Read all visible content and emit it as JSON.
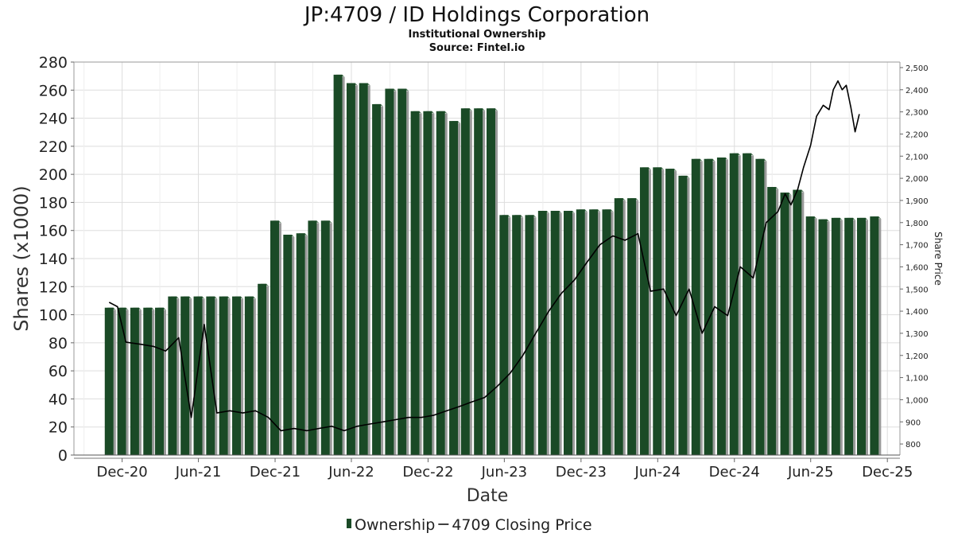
{
  "chart_data": {
    "type": "bar",
    "title": "JP:4709 / ID Holdings Corporation",
    "subtitle_line1": "Institutional Ownership",
    "subtitle_line2": "Source: Fintel.io",
    "xlabel": "Date",
    "ylabel": "Shares (x1000)",
    "y2label": "Share Price",
    "ylim": [
      0,
      280
    ],
    "y_ticks": [
      0,
      20,
      40,
      60,
      80,
      100,
      120,
      140,
      160,
      180,
      200,
      220,
      240,
      260,
      280
    ],
    "y2lim": [
      750,
      2525
    ],
    "y2_ticks": [
      800,
      900,
      1000,
      1100,
      1200,
      1300,
      1400,
      1500,
      1600,
      1700,
      1800,
      1900,
      2000,
      2100,
      2200,
      2300,
      2400,
      2500
    ],
    "y2_tick_labels": [
      "800",
      "900",
      "1,000",
      "1,100",
      "1,200",
      "1,300",
      "1,400",
      "1,500",
      "1,600",
      "1,700",
      "1,800",
      "1,900",
      "2,000",
      "2,100",
      "2,200",
      "2,300",
      "2,400",
      "2,500"
    ],
    "xlim": [
      "2020-08-08",
      "2025-12-31"
    ],
    "x_ticks": [
      {
        "date": "2020-12-01",
        "label": "Dec-20"
      },
      {
        "date": "2021-06-01",
        "label": "Jun-21"
      },
      {
        "date": "2021-12-01",
        "label": "Dec-21"
      },
      {
        "date": "2022-06-01",
        "label": "Jun-22"
      },
      {
        "date": "2022-12-01",
        "label": "Dec-22"
      },
      {
        "date": "2023-06-01",
        "label": "Jun-23"
      },
      {
        "date": "2023-12-01",
        "label": "Dec-23"
      },
      {
        "date": "2024-06-01",
        "label": "Jun-24"
      },
      {
        "date": "2024-12-01",
        "label": "Dec-24"
      },
      {
        "date": "2025-06-01",
        "label": "Jun-25"
      },
      {
        "date": "2025-12-01",
        "label": "Dec-25"
      }
    ],
    "grid": true,
    "legend_placement": "bottom",
    "colors": {
      "bar_front": "#1a4a26",
      "bar_side": "#9a9a9a",
      "bar_top": "#5e7e64",
      "price_line": "#000000",
      "grid": "#dddddd",
      "axis": "#999999"
    },
    "series": [
      {
        "name": "Ownership",
        "kind": "bar",
        "points": [
          {
            "x": "2020-10-31",
            "y": 105
          },
          {
            "x": "2020-11-30",
            "y": 105
          },
          {
            "x": "2020-12-31",
            "y": 105
          },
          {
            "x": "2021-01-31",
            "y": 105
          },
          {
            "x": "2021-02-28",
            "y": 105
          },
          {
            "x": "2021-03-31",
            "y": 113
          },
          {
            "x": "2021-04-30",
            "y": 113
          },
          {
            "x": "2021-05-31",
            "y": 113
          },
          {
            "x": "2021-06-30",
            "y": 113
          },
          {
            "x": "2021-07-31",
            "y": 113
          },
          {
            "x": "2021-08-31",
            "y": 113
          },
          {
            "x": "2021-09-30",
            "y": 113
          },
          {
            "x": "2021-10-31",
            "y": 122
          },
          {
            "x": "2021-11-30",
            "y": 167
          },
          {
            "x": "2021-12-31",
            "y": 157
          },
          {
            "x": "2022-01-31",
            "y": 158
          },
          {
            "x": "2022-02-28",
            "y": 167
          },
          {
            "x": "2022-03-31",
            "y": 167
          },
          {
            "x": "2022-04-30",
            "y": 271
          },
          {
            "x": "2022-05-31",
            "y": 265
          },
          {
            "x": "2022-06-30",
            "y": 265
          },
          {
            "x": "2022-07-31",
            "y": 250
          },
          {
            "x": "2022-08-31",
            "y": 261
          },
          {
            "x": "2022-09-30",
            "y": 261
          },
          {
            "x": "2022-10-31",
            "y": 245
          },
          {
            "x": "2022-11-30",
            "y": 245
          },
          {
            "x": "2022-12-31",
            "y": 245
          },
          {
            "x": "2023-01-31",
            "y": 238
          },
          {
            "x": "2023-02-28",
            "y": 247
          },
          {
            "x": "2023-03-31",
            "y": 247
          },
          {
            "x": "2023-04-30",
            "y": 247
          },
          {
            "x": "2023-05-31",
            "y": 171
          },
          {
            "x": "2023-06-30",
            "y": 171
          },
          {
            "x": "2023-07-31",
            "y": 171
          },
          {
            "x": "2023-08-31",
            "y": 174
          },
          {
            "x": "2023-09-30",
            "y": 174
          },
          {
            "x": "2023-10-31",
            "y": 174
          },
          {
            "x": "2023-11-30",
            "y": 175
          },
          {
            "x": "2023-12-31",
            "y": 175
          },
          {
            "x": "2024-01-31",
            "y": 175
          },
          {
            "x": "2024-02-29",
            "y": 183
          },
          {
            "x": "2024-03-31",
            "y": 183
          },
          {
            "x": "2024-04-30",
            "y": 205
          },
          {
            "x": "2024-05-31",
            "y": 205
          },
          {
            "x": "2024-06-30",
            "y": 204
          },
          {
            "x": "2024-07-31",
            "y": 199
          },
          {
            "x": "2024-08-31",
            "y": 211
          },
          {
            "x": "2024-09-30",
            "y": 211
          },
          {
            "x": "2024-10-31",
            "y": 212
          },
          {
            "x": "2024-11-30",
            "y": 215
          },
          {
            "x": "2024-12-31",
            "y": 215
          },
          {
            "x": "2025-01-31",
            "y": 211
          },
          {
            "x": "2025-02-28",
            "y": 191
          },
          {
            "x": "2025-03-31",
            "y": 187
          },
          {
            "x": "2025-04-30",
            "y": 189
          },
          {
            "x": "2025-05-31",
            "y": 170
          },
          {
            "x": "2025-06-30",
            "y": 168
          },
          {
            "x": "2025-07-31",
            "y": 169
          },
          {
            "x": "2025-08-31",
            "y": 169
          },
          {
            "x": "2025-09-30",
            "y": 169
          },
          {
            "x": "2025-10-31",
            "y": 170
          }
        ]
      },
      {
        "name": "4709 Closing Price",
        "kind": "line",
        "axis": "right",
        "points": [
          {
            "x": "2020-10-31",
            "y": 1440
          },
          {
            "x": "2020-11-20",
            "y": 1420
          },
          {
            "x": "2020-12-10",
            "y": 1260
          },
          {
            "x": "2021-01-15",
            "y": 1250
          },
          {
            "x": "2021-02-15",
            "y": 1240
          },
          {
            "x": "2021-03-15",
            "y": 1220
          },
          {
            "x": "2021-04-15",
            "y": 1280
          },
          {
            "x": "2021-05-15",
            "y": 920
          },
          {
            "x": "2021-06-15",
            "y": 1340
          },
          {
            "x": "2021-07-15",
            "y": 940
          },
          {
            "x": "2021-08-15",
            "y": 950
          },
          {
            "x": "2021-09-15",
            "y": 940
          },
          {
            "x": "2021-10-15",
            "y": 950
          },
          {
            "x": "2021-11-15",
            "y": 920
          },
          {
            "x": "2021-12-15",
            "y": 860
          },
          {
            "x": "2022-01-15",
            "y": 870
          },
          {
            "x": "2022-02-15",
            "y": 860
          },
          {
            "x": "2022-03-15",
            "y": 870
          },
          {
            "x": "2022-04-15",
            "y": 880
          },
          {
            "x": "2022-05-15",
            "y": 860
          },
          {
            "x": "2022-06-15",
            "y": 880
          },
          {
            "x": "2022-07-15",
            "y": 890
          },
          {
            "x": "2022-08-15",
            "y": 900
          },
          {
            "x": "2022-09-15",
            "y": 910
          },
          {
            "x": "2022-10-15",
            "y": 920
          },
          {
            "x": "2022-11-15",
            "y": 920
          },
          {
            "x": "2022-12-15",
            "y": 930
          },
          {
            "x": "2023-01-15",
            "y": 950
          },
          {
            "x": "2023-02-15",
            "y": 970
          },
          {
            "x": "2023-03-15",
            "y": 990
          },
          {
            "x": "2023-04-15",
            "y": 1010
          },
          {
            "x": "2023-05-15",
            "y": 1060
          },
          {
            "x": "2023-06-15",
            "y": 1120
          },
          {
            "x": "2023-07-15",
            "y": 1200
          },
          {
            "x": "2023-08-15",
            "y": 1300
          },
          {
            "x": "2023-09-15",
            "y": 1400
          },
          {
            "x": "2023-10-15",
            "y": 1480
          },
          {
            "x": "2023-11-15",
            "y": 1540
          },
          {
            "x": "2023-12-15",
            "y": 1620
          },
          {
            "x": "2024-01-15",
            "y": 1700
          },
          {
            "x": "2024-02-15",
            "y": 1740
          },
          {
            "x": "2024-03-15",
            "y": 1720
          },
          {
            "x": "2024-04-15",
            "y": 1750
          },
          {
            "x": "2024-05-15",
            "y": 1490
          },
          {
            "x": "2024-06-15",
            "y": 1500
          },
          {
            "x": "2024-07-15",
            "y": 1380
          },
          {
            "x": "2024-08-15",
            "y": 1500
          },
          {
            "x": "2024-09-15",
            "y": 1300
          },
          {
            "x": "2024-10-15",
            "y": 1420
          },
          {
            "x": "2024-11-15",
            "y": 1380
          },
          {
            "x": "2024-12-15",
            "y": 1600
          },
          {
            "x": "2025-01-15",
            "y": 1550
          },
          {
            "x": "2025-02-15",
            "y": 1800
          },
          {
            "x": "2025-03-15",
            "y": 1850
          },
          {
            "x": "2025-04-01",
            "y": 1930
          },
          {
            "x": "2025-04-15",
            "y": 1880
          },
          {
            "x": "2025-05-01",
            "y": 1950
          },
          {
            "x": "2025-05-15",
            "y": 2050
          },
          {
            "x": "2025-06-01",
            "y": 2150
          },
          {
            "x": "2025-06-15",
            "y": 2280
          },
          {
            "x": "2025-07-01",
            "y": 2330
          },
          {
            "x": "2025-07-15",
            "y": 2310
          },
          {
            "x": "2025-07-25",
            "y": 2400
          },
          {
            "x": "2025-08-05",
            "y": 2440
          },
          {
            "x": "2025-08-15",
            "y": 2400
          },
          {
            "x": "2025-08-25",
            "y": 2420
          },
          {
            "x": "2025-09-05",
            "y": 2320
          },
          {
            "x": "2025-09-15",
            "y": 2210
          },
          {
            "x": "2025-09-25",
            "y": 2290
          }
        ]
      }
    ]
  }
}
